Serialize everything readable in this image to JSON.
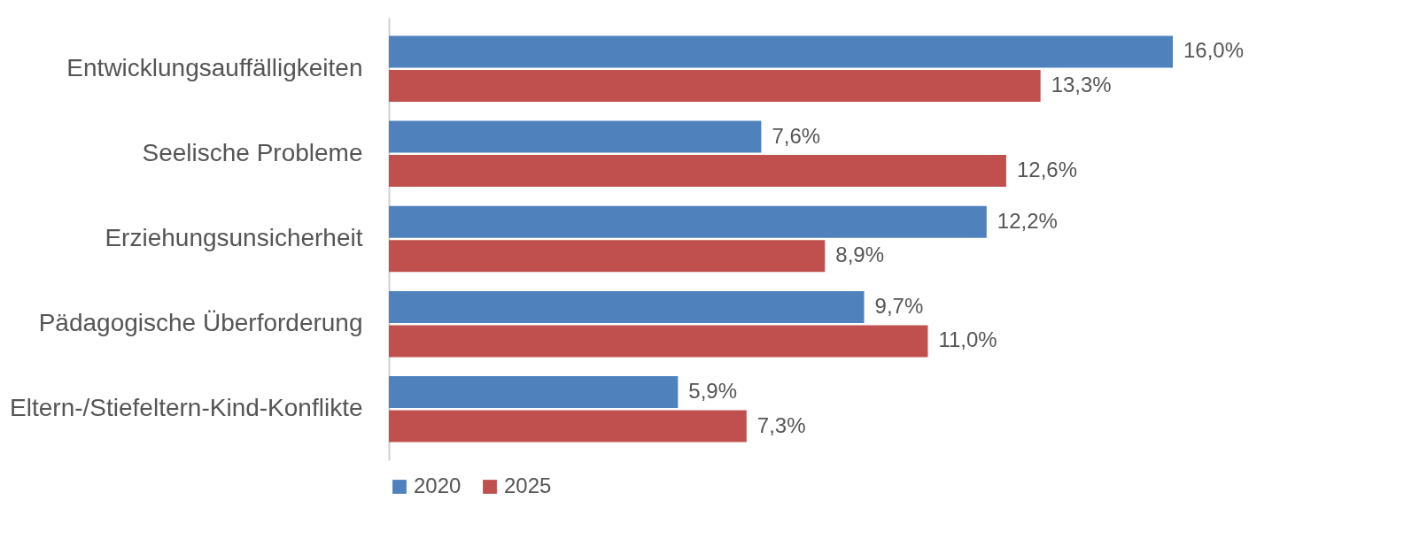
{
  "chart_data": {
    "type": "bar",
    "orientation": "horizontal",
    "legend": "bottom",
    "categories": [
      "Entwicklungsauffälligkeiten",
      "Seelische Probleme",
      "Erziehungsunsicherheit",
      "Pädagogische Überforderung",
      "Eltern-/Stiefeltern-Kind-Konflikte"
    ],
    "series": [
      {
        "name": "2020",
        "color": "#4f81bd",
        "values": [
          16.0,
          7.6,
          12.2,
          9.7,
          5.9
        ],
        "value_labels": [
          "16,0%",
          "7,6%",
          "12,2%",
          "9,7%",
          "5,9%"
        ]
      },
      {
        "name": "2025",
        "color": "#c0504d",
        "values": [
          13.3,
          12.6,
          8.9,
          11.0,
          7.3
        ],
        "value_labels": [
          "13,3%",
          "12,6%",
          "8,9%",
          "11,0%",
          "7,3%"
        ]
      }
    ]
  }
}
